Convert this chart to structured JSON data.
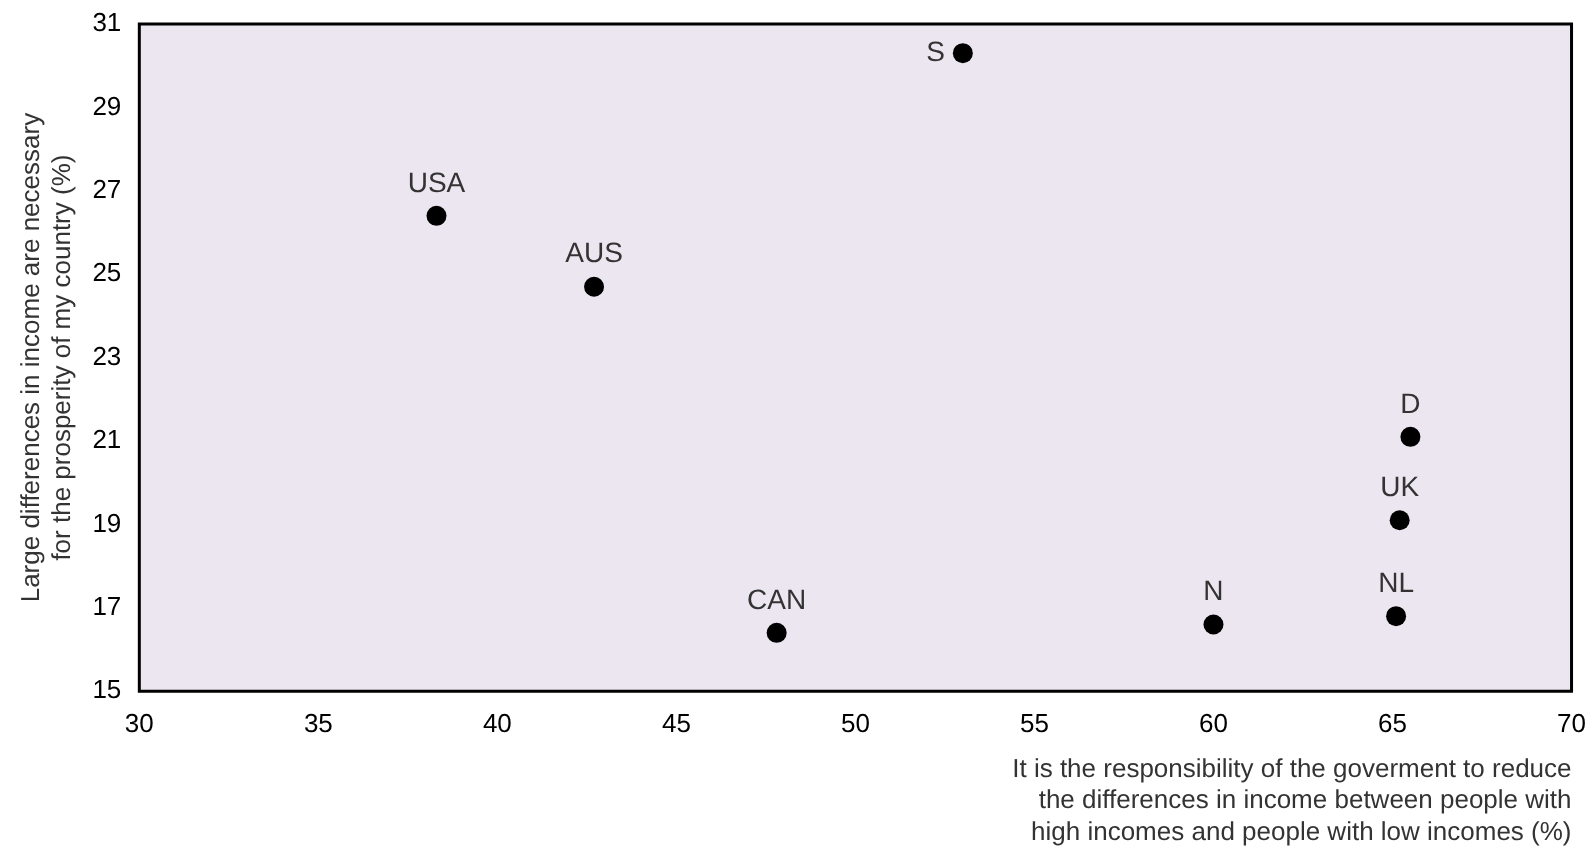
{
  "chart_data": {
    "type": "scatter",
    "xlabel": "It is the responsibility of the goverment to reduce\nthe differences in income between people with\nhigh incomes and people with low incomes (%)",
    "ylabel": "Large differences in income are necessary\nfor the prosperity of my country (%)",
    "series": [
      {
        "color": "#000000",
        "x": [
          38.3,
          42.7,
          53,
          47.8,
          60,
          65.1,
          65.2,
          65.5
        ],
        "values": [
          26.4,
          24.7,
          30.3,
          16.4,
          16.6,
          16.8,
          19.1,
          21.1
        ]
      }
    ],
    "annotations": [
      {
        "text": "USA",
        "x": 38.3,
        "y": 26.4
      },
      {
        "text": "AUS",
        "x": 42.7,
        "y": 24.7
      },
      {
        "text": "S",
        "x": 53,
        "y": 30.3
      },
      {
        "text": "CAN",
        "x": 47.8,
        "y": 16.4
      },
      {
        "text": "N",
        "x": 60,
        "y": 16.6
      },
      {
        "text": "NL",
        "x": 65.1,
        "y": 16.8
      },
      {
        "text": "UK",
        "x": 65.2,
        "y": 19.1
      },
      {
        "text": "D",
        "x": 65.5,
        "y": 21.1
      }
    ],
    "xlim": [
      30,
      70
    ],
    "xticks": [
      30,
      35,
      40,
      45,
      50,
      55,
      60,
      65,
      70
    ],
    "ylim": [
      15,
      31
    ],
    "yticks": [
      15,
      17,
      19,
      21,
      23,
      25,
      27,
      29,
      31
    ],
    "grid": false,
    "legend": false,
    "marker": "circle"
  }
}
